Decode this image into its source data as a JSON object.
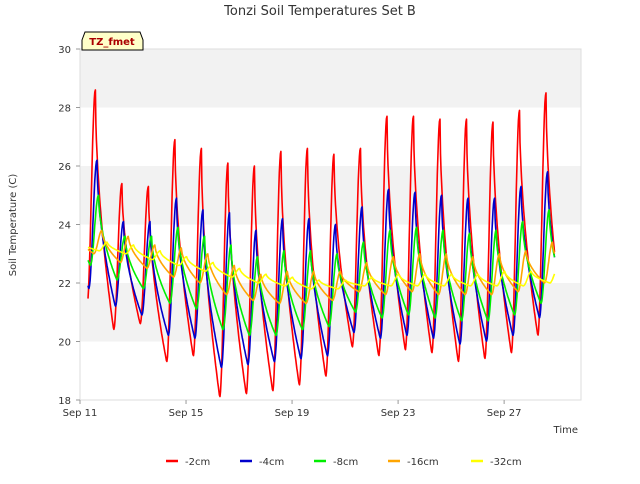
{
  "chart_data": {
    "type": "line",
    "title": "Tonzi Soil Temperatures Set B",
    "xlabel": "Time",
    "ylabel": "Soil Temperature (C)",
    "badge": "TZ_fmet",
    "ylim": [
      18,
      30
    ],
    "yticks": [
      18,
      20,
      22,
      24,
      26,
      28,
      30
    ],
    "xlim_days": [
      0,
      18.9
    ],
    "xticks": [
      {
        "label": "Sep 11",
        "day": 0
      },
      {
        "label": "Sep 15",
        "day": 4
      },
      {
        "label": "Sep 19",
        "day": 8
      },
      {
        "label": "Sep 23",
        "day": 12
      },
      {
        "label": "Sep 27",
        "day": 16
      }
    ],
    "grid": "alternating horizontal bands",
    "legend_position": "bottom",
    "x_range_days": [
      0.3,
      17.9
    ],
    "series": [
      {
        "name": "-2cm",
        "color": "#ff0000",
        "daily_min": [
          21.3,
          20.4,
          20.6,
          19.3,
          19.5,
          18.1,
          18.2,
          18.3,
          18.5,
          18.8,
          19.8,
          19.5,
          19.7,
          19.6,
          19.3,
          19.4,
          19.6,
          20.2
        ],
        "daily_max": [
          28.6,
          25.4,
          25.3,
          26.9,
          26.6,
          26.1,
          26.0,
          26.5,
          26.6,
          26.4,
          26.6,
          27.7,
          27.7,
          27.6,
          27.6,
          27.5,
          27.9,
          28.5
        ],
        "peak_phase": 0.58,
        "min_phase": 0.27,
        "lag": 0.0
      },
      {
        "name": "-4cm",
        "color": "#0000cc",
        "daily_min": [
          21.8,
          21.2,
          20.9,
          20.2,
          20.1,
          19.1,
          19.2,
          19.3,
          19.4,
          19.5,
          20.3,
          20.1,
          20.2,
          20.1,
          19.9,
          20.0,
          20.2,
          20.8
        ],
        "daily_max": [
          26.2,
          24.1,
          24.1,
          24.9,
          24.5,
          24.4,
          23.8,
          24.2,
          24.2,
          24.0,
          24.6,
          25.2,
          25.1,
          25.0,
          24.9,
          24.9,
          25.3,
          25.8
        ],
        "peak_phase": 0.58,
        "min_phase": 0.27,
        "lag": 0.06
      },
      {
        "name": "-8cm",
        "color": "#00ee00",
        "daily_min": [
          22.6,
          22.1,
          21.8,
          21.3,
          21.1,
          20.4,
          20.2,
          20.2,
          20.4,
          20.5,
          21.0,
          20.8,
          20.9,
          20.8,
          20.7,
          20.7,
          20.9,
          21.3
        ],
        "daily_max": [
          25.0,
          23.6,
          23.6,
          23.9,
          23.6,
          23.3,
          22.9,
          23.1,
          23.1,
          23.0,
          23.4,
          23.8,
          23.9,
          23.8,
          23.7,
          23.8,
          24.1,
          24.5
        ],
        "peak_phase": 0.58,
        "min_phase": 0.27,
        "lag": 0.12
      },
      {
        "name": "-16cm",
        "color": "#ffa500",
        "daily_min": [
          23.0,
          22.7,
          22.5,
          22.2,
          22.0,
          21.6,
          21.4,
          21.3,
          21.3,
          21.4,
          21.7,
          21.6,
          21.7,
          21.6,
          21.6,
          21.6,
          21.7,
          22.0
        ],
        "daily_max": [
          23.8,
          23.6,
          23.3,
          23.2,
          23.0,
          22.6,
          22.3,
          22.4,
          22.4,
          22.4,
          22.7,
          22.9,
          23.0,
          23.0,
          22.9,
          23.0,
          23.1,
          23.4
        ],
        "peak_phase": 0.58,
        "min_phase": 0.27,
        "lag": 0.25
      },
      {
        "name": "-32cm",
        "color": "#ffff00",
        "daily_min": [
          23.1,
          23.0,
          22.8,
          22.6,
          22.4,
          22.2,
          22.0,
          21.9,
          21.8,
          21.8,
          21.9,
          21.9,
          21.9,
          21.9,
          21.9,
          21.9,
          21.9,
          22.0
        ],
        "daily_max": [
          23.4,
          23.3,
          23.1,
          22.9,
          22.7,
          22.5,
          22.3,
          22.2,
          22.1,
          22.1,
          22.2,
          22.3,
          22.3,
          22.3,
          22.3,
          22.4,
          22.4,
          22.5
        ],
        "peak_phase": 0.58,
        "min_phase": 0.27,
        "lag": 0.45
      }
    ]
  }
}
